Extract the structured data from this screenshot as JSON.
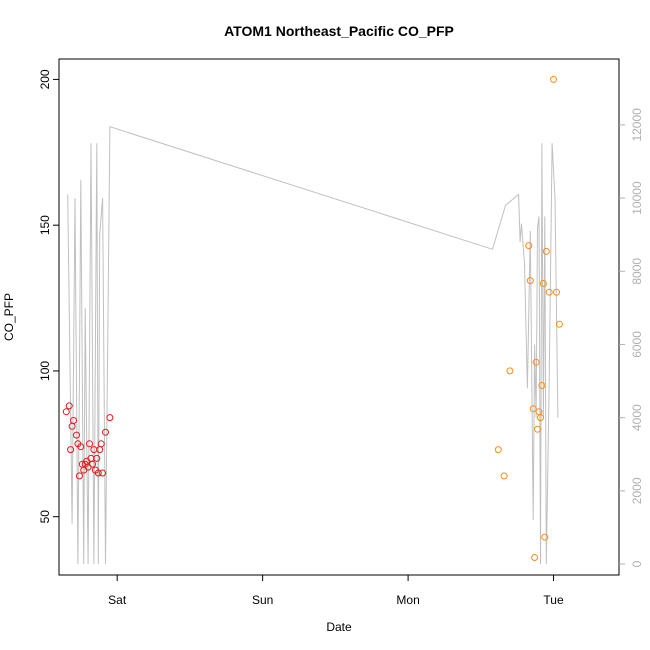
{
  "chart_data": {
    "type": "scatter",
    "title": "ATOM1 Northeast_Pacific CO_PFP",
    "xlabel": "Date",
    "ylabel": "CO_PFP",
    "x_ticks": [
      "Sat",
      "Sun",
      "Mon",
      "Tue"
    ],
    "y_ticks_left": [
      "50",
      "100",
      "150",
      "200"
    ],
    "y_ticks_right": [
      "0",
      "2000",
      "4000",
      "6000",
      "8000",
      "10000",
      "12000"
    ],
    "ylim": [
      30,
      207
    ],
    "y2lim": [
      -300,
      13800
    ],
    "xlim": [
      0.6,
      4.45
    ],
    "colors": {
      "series1": "#e41a1c",
      "series2": "#ff8c1a",
      "line": "#c0c0c0",
      "axis": "#000000",
      "axis_right": "#b0b0b0"
    },
    "series": [
      {
        "marker": "circle",
        "color": "#e41a1c",
        "x": [
          0.65,
          0.67,
          0.68,
          0.69,
          0.7,
          0.72,
          0.73,
          0.74,
          0.75,
          0.76,
          0.77,
          0.78,
          0.79,
          0.8,
          0.81,
          0.82,
          0.83,
          0.84,
          0.85,
          0.86,
          0.87,
          0.88,
          0.89,
          0.9,
          0.92,
          0.95
        ],
        "y": [
          86,
          88,
          73,
          81,
          83,
          78,
          75,
          64,
          74,
          68,
          66,
          68,
          69,
          67,
          75,
          70,
          68,
          73,
          66,
          70,
          65,
          73,
          75,
          65,
          79,
          84
        ]
      },
      {
        "marker": "circle",
        "color": "#ff8c1a",
        "x": [
          3.62,
          3.66,
          3.7,
          3.83,
          3.84,
          3.86,
          3.87,
          3.88,
          3.89,
          3.9,
          3.91,
          3.92,
          3.93,
          3.94,
          3.95,
          3.97,
          4.0,
          4.02,
          4.04
        ],
        "y": [
          73,
          64,
          100,
          143,
          131,
          87,
          36,
          103,
          80,
          86,
          84,
          95,
          130,
          43,
          141,
          127,
          200,
          127,
          116
        ]
      }
    ],
    "secondary_line": {
      "color": "#c0c0c0",
      "x": [
        0.66,
        0.69,
        0.71,
        0.73,
        0.74,
        0.75,
        0.77,
        0.78,
        0.8,
        0.82,
        0.84,
        0.86,
        0.87,
        0.88,
        0.9,
        0.92,
        0.95,
        3.58,
        3.67,
        3.76,
        3.77,
        3.78,
        3.8,
        3.82,
        3.84,
        3.86,
        3.87,
        3.88,
        3.89,
        3.9,
        3.91,
        3.92,
        3.93,
        3.94,
        3.95,
        3.97,
        3.99,
        4.01,
        4.03
      ],
      "y": [
        10100,
        1100,
        10000,
        0,
        5000,
        10500,
        0,
        7000,
        0,
        11500,
        0,
        11500,
        0,
        9000,
        10000,
        0,
        11950,
        8600,
        9800,
        10100,
        8800,
        9300,
        8200,
        4800,
        9100,
        1200,
        6000,
        4000,
        9200,
        9500,
        0,
        11500,
        4000,
        9500,
        0,
        5000,
        11500,
        10000,
        4000
      ]
    }
  }
}
